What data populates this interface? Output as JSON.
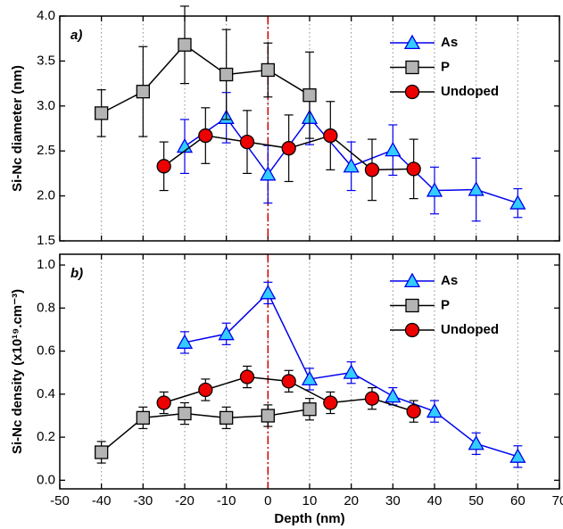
{
  "chart_data": [
    {
      "type": "line",
      "panel_label": "a)",
      "ylabel": "Si-Nc diameter (nm)",
      "xlim": [
        -50,
        70
      ],
      "xticks": [
        -50,
        -40,
        -30,
        -20,
        -10,
        0,
        10,
        20,
        30,
        40,
        50,
        60,
        70
      ],
      "ylim": [
        1.5,
        4.0
      ],
      "yticks": [
        1.5,
        {
          "value": 2.0,
          "label": "2.0"
        },
        2.5,
        {
          "value": 3.0,
          "label": "3.0"
        },
        3.5,
        {
          "value": 4.0,
          "label": "4.0"
        }
      ],
      "grid": true,
      "legend": "upper right",
      "vline": {
        "x": 0,
        "color": "#cc0000"
      },
      "series": [
        {
          "name": "As",
          "color": "#0000ee",
          "marker": "triangle",
          "marker_color": "#33ccff",
          "x": [
            -20,
            -10,
            0,
            10,
            20,
            30,
            40,
            50,
            60
          ],
          "values": [
            2.55,
            2.87,
            2.24,
            2.87,
            2.33,
            2.51,
            2.06,
            2.07,
            1.92
          ],
          "errors": [
            0.3,
            0.28,
            0.32,
            0.3,
            0.27,
            0.28,
            0.26,
            0.35,
            0.16
          ]
        },
        {
          "name": "P",
          "color": "#000000",
          "marker": "square",
          "marker_color": "#b4b4b4",
          "x": [
            -40,
            -30,
            -20,
            -10,
            0,
            10
          ],
          "values": [
            2.92,
            3.16,
            3.68,
            3.35,
            3.4,
            3.12
          ],
          "errors": [
            0.26,
            0.5,
            0.43,
            0.5,
            0.3,
            0.48
          ]
        },
        {
          "name": "Undoped",
          "color": "#000000",
          "marker": "circle",
          "marker_color": "#ee0000",
          "x": [
            -25,
            -15,
            -5,
            5,
            15,
            25,
            35
          ],
          "values": [
            2.33,
            2.67,
            2.6,
            2.53,
            2.67,
            2.29,
            2.3
          ],
          "errors": [
            0.27,
            0.31,
            0.35,
            0.37,
            0.38,
            0.34,
            0.33
          ]
        }
      ]
    },
    {
      "type": "line",
      "panel_label": "b)",
      "ylabel": "Si-Nc density (x10¹⁹.cm⁻³)",
      "xlabel": "Depth (nm)",
      "xlim": [
        -50,
        70
      ],
      "xticks": [
        -50,
        -40,
        -30,
        -20,
        -10,
        0,
        10,
        20,
        30,
        40,
        50,
        60,
        70
      ],
      "ylim": [
        -0.04,
        1.05
      ],
      "yticks": [
        {
          "value": 0.0,
          "label": "0.0"
        },
        0.2,
        0.4,
        0.6,
        0.8,
        {
          "value": 1.0,
          "label": "1.0"
        }
      ],
      "grid": true,
      "legend": "upper right",
      "vline": {
        "x": 0,
        "color": "#cc0000"
      },
      "series": [
        {
          "name": "As",
          "color": "#0000ee",
          "marker": "triangle",
          "marker_color": "#33ccff",
          "x": [
            -20,
            -10,
            0,
            10,
            20,
            30,
            40,
            50,
            60
          ],
          "values": [
            0.64,
            0.68,
            0.87,
            0.47,
            0.5,
            0.39,
            0.32,
            0.17,
            0.11
          ],
          "errors": [
            0.05,
            0.05,
            0.05,
            0.05,
            0.05,
            0.04,
            0.05,
            0.05,
            0.05
          ]
        },
        {
          "name": "P",
          "color": "#000000",
          "marker": "square",
          "marker_color": "#b4b4b4",
          "x": [
            -40,
            -30,
            -20,
            -10,
            0,
            10
          ],
          "values": [
            0.13,
            0.29,
            0.31,
            0.29,
            0.3,
            0.33
          ],
          "errors": [
            0.05,
            0.05,
            0.05,
            0.05,
            0.05,
            0.05
          ]
        },
        {
          "name": "Undoped",
          "color": "#000000",
          "marker": "circle",
          "marker_color": "#ee0000",
          "x": [
            -25,
            -15,
            -5,
            5,
            15,
            25,
            35
          ],
          "values": [
            0.36,
            0.42,
            0.48,
            0.46,
            0.36,
            0.38,
            0.32
          ],
          "errors": [
            0.05,
            0.05,
            0.05,
            0.05,
            0.05,
            0.05,
            0.05
          ]
        }
      ]
    }
  ]
}
